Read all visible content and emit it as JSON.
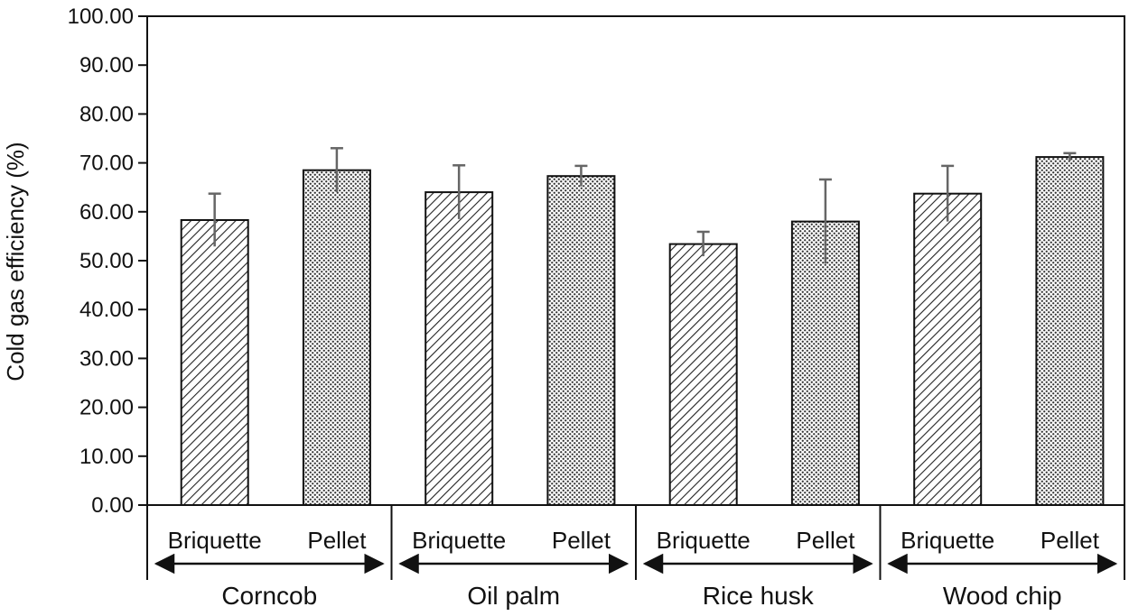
{
  "chart_data": {
    "type": "bar",
    "title": "",
    "xlabel": "",
    "ylabel": "Cold gas efficiency (%)",
    "ylim": [
      0,
      100
    ],
    "yticks": [
      "0.00",
      "10.00",
      "20.00",
      "30.00",
      "40.00",
      "50.00",
      "60.00",
      "70.00",
      "80.00",
      "90.00",
      "100.00"
    ],
    "grid": false,
    "groups": [
      {
        "name": "Corncob",
        "bars": [
          {
            "label": "Briquette",
            "value": 58.3,
            "error": 5.4,
            "pattern": "hatch"
          },
          {
            "label": "Pellet",
            "value": 68.5,
            "error": 4.5,
            "pattern": "dots"
          }
        ]
      },
      {
        "name": "Oil palm",
        "bars": [
          {
            "label": "Briquette",
            "value": 64.0,
            "error": 5.5,
            "pattern": "hatch"
          },
          {
            "label": "Pellet",
            "value": 67.3,
            "error": 2.1,
            "pattern": "dots"
          }
        ]
      },
      {
        "name": "Rice husk",
        "bars": [
          {
            "label": "Briquette",
            "value": 53.4,
            "error": 2.5,
            "pattern": "hatch"
          },
          {
            "label": "Pellet",
            "value": 58.0,
            "error": 8.6,
            "pattern": "dots"
          }
        ]
      },
      {
        "name": "Wood chip",
        "bars": [
          {
            "label": "Briquette",
            "value": 63.7,
            "error": 5.7,
            "pattern": "hatch"
          },
          {
            "label": "Pellet",
            "value": 71.2,
            "error": 0.8,
            "pattern": "dots"
          }
        ]
      }
    ]
  },
  "colors": {
    "axis": "#111111",
    "bar_outline": "#111111",
    "error_bar": "#666666",
    "background": "#ffffff"
  }
}
